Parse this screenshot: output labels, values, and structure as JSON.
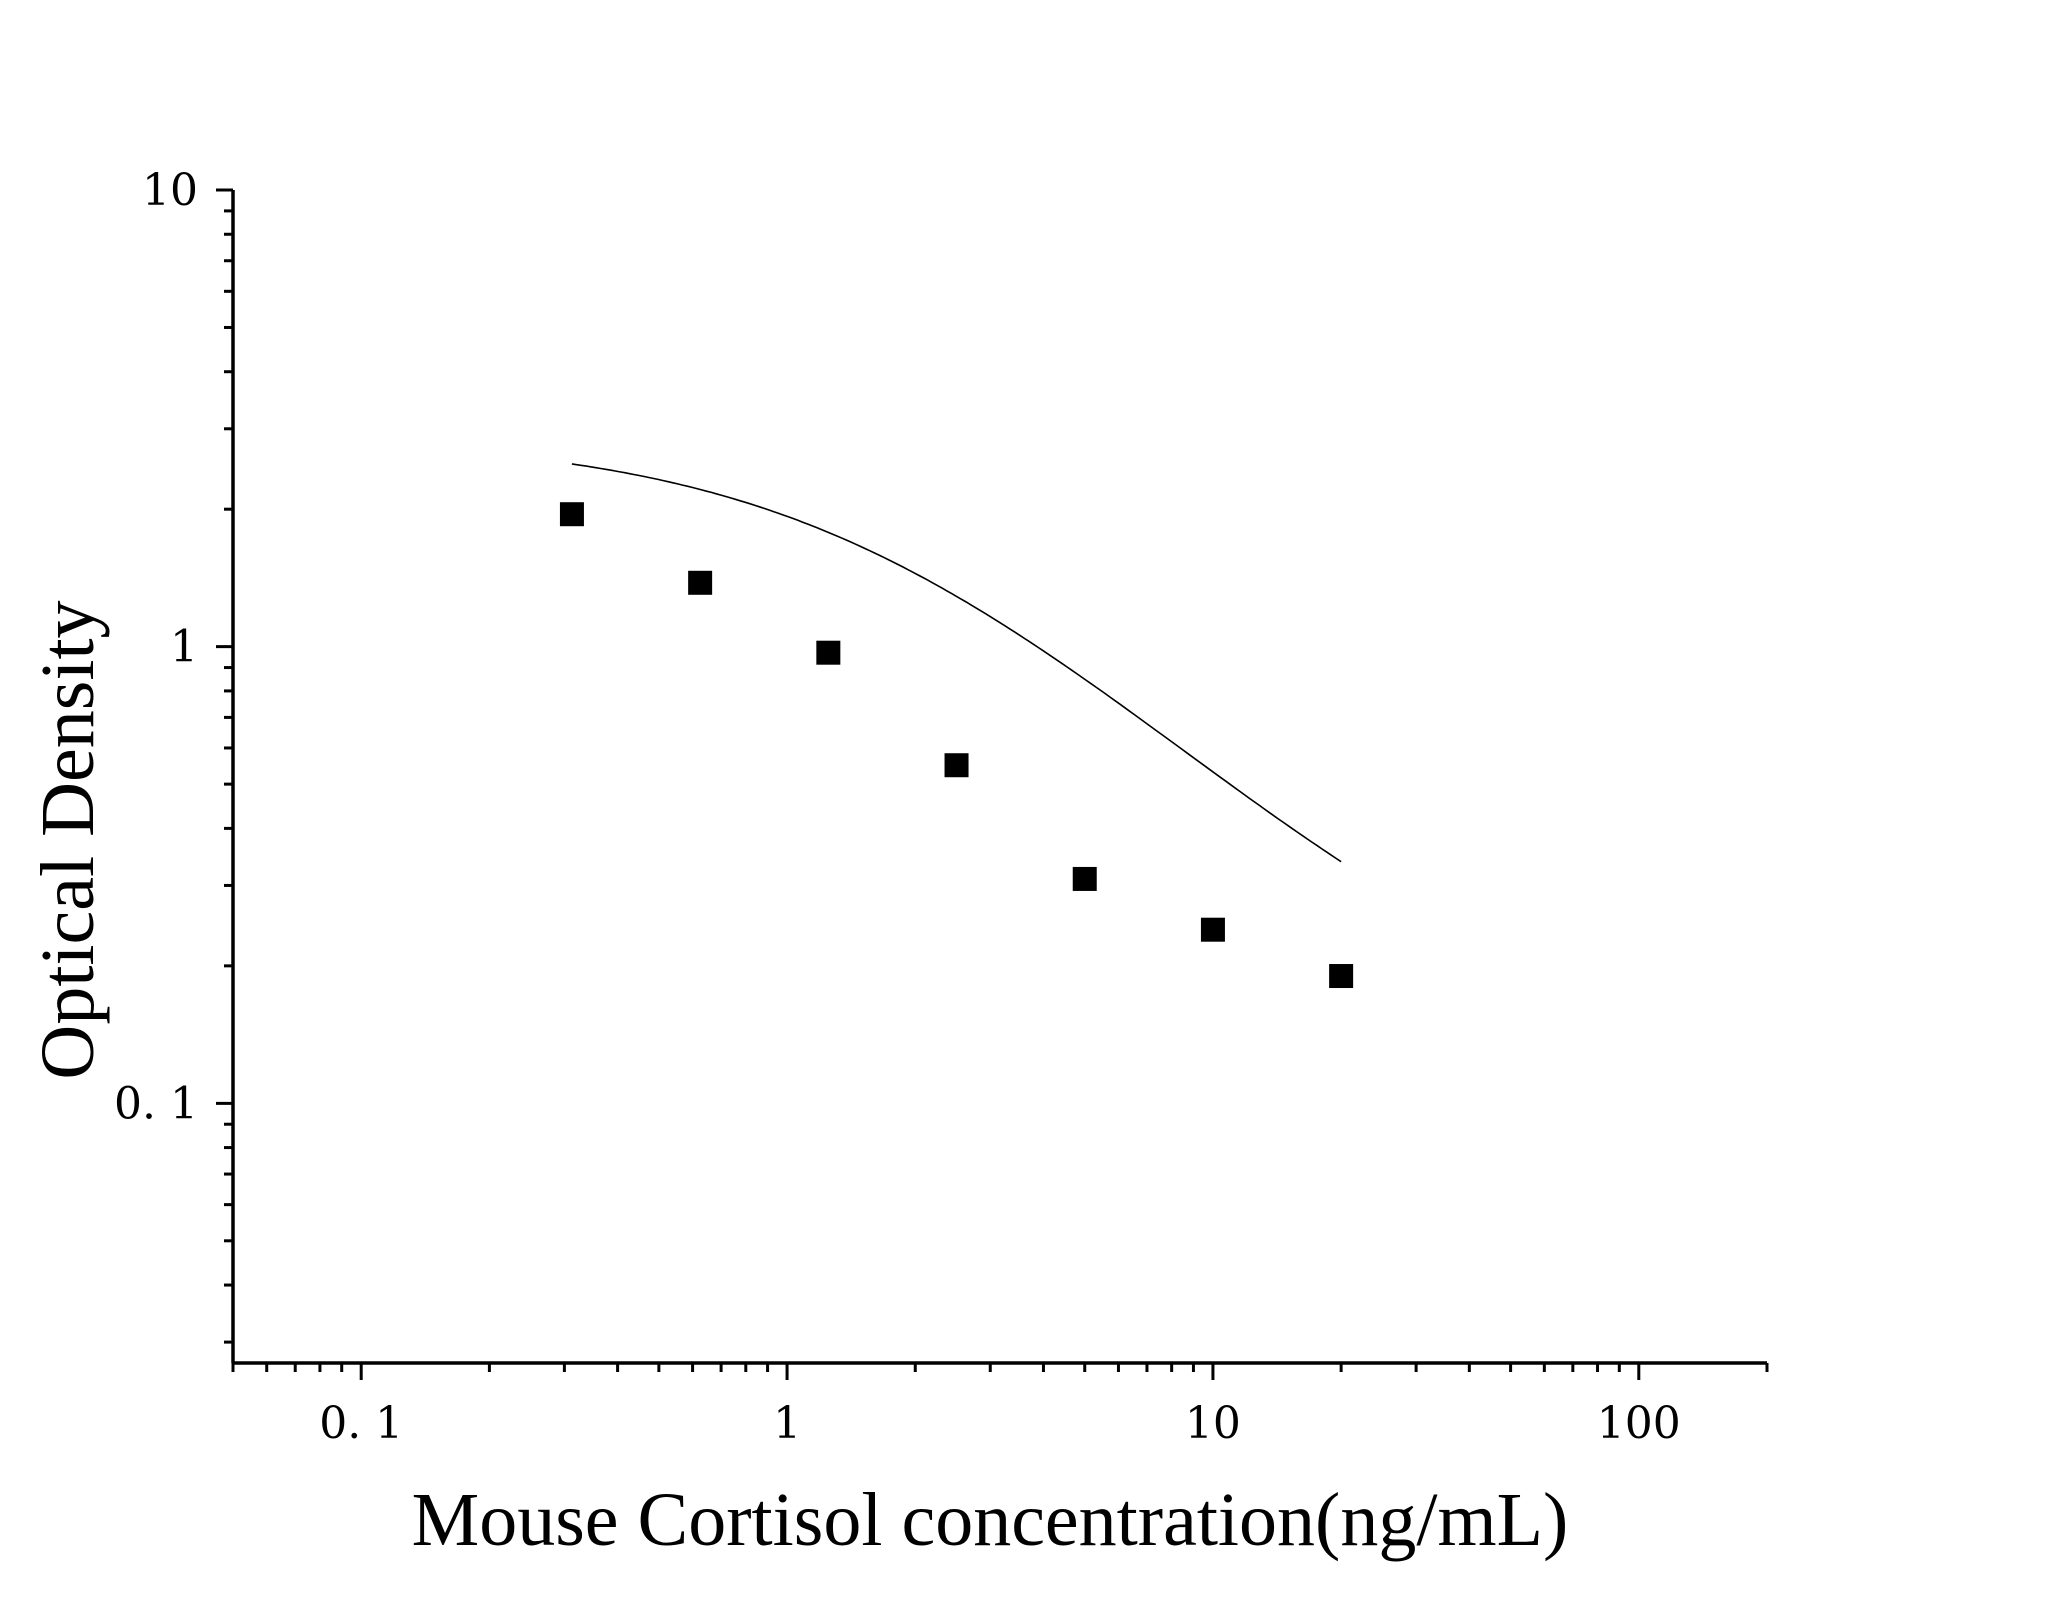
{
  "chart_data": {
    "type": "scatter",
    "title": "",
    "xlabel": "Mouse Cortisol concentration(ng/mL)",
    "ylabel": "Optical Density",
    "x_scale": "log",
    "y_scale": "log",
    "xlim": [
      0.05,
      200
    ],
    "ylim": [
      0.027,
      10
    ],
    "x_ticks": [
      {
        "value": 0.1,
        "label": "0. 1"
      },
      {
        "value": 1,
        "label": "1"
      },
      {
        "value": 10,
        "label": "10"
      },
      {
        "value": 100,
        "label": "100"
      }
    ],
    "y_ticks": [
      {
        "value": 0.1,
        "label": "0. 1"
      },
      {
        "value": 1,
        "label": "1"
      },
      {
        "value": 10,
        "label": "10"
      }
    ],
    "grid": false,
    "legend": "none",
    "colors": {
      "marker": "#000000",
      "curve": "#000000",
      "axis": "#000000"
    },
    "series": [
      {
        "marker": "square",
        "x": [
          0.3125,
          0.625,
          1.25,
          2.5,
          5,
          10,
          20
        ],
        "y": [
          1.95,
          1.38,
          0.97,
          0.55,
          0.31,
          0.24,
          0.19
        ]
      }
    ],
    "fit_curve": {
      "type": "4PL",
      "x_range": [
        0.3125,
        20
      ],
      "A": 2.9,
      "D": 0.12,
      "C": 1.83,
      "B": 1.03
    }
  }
}
